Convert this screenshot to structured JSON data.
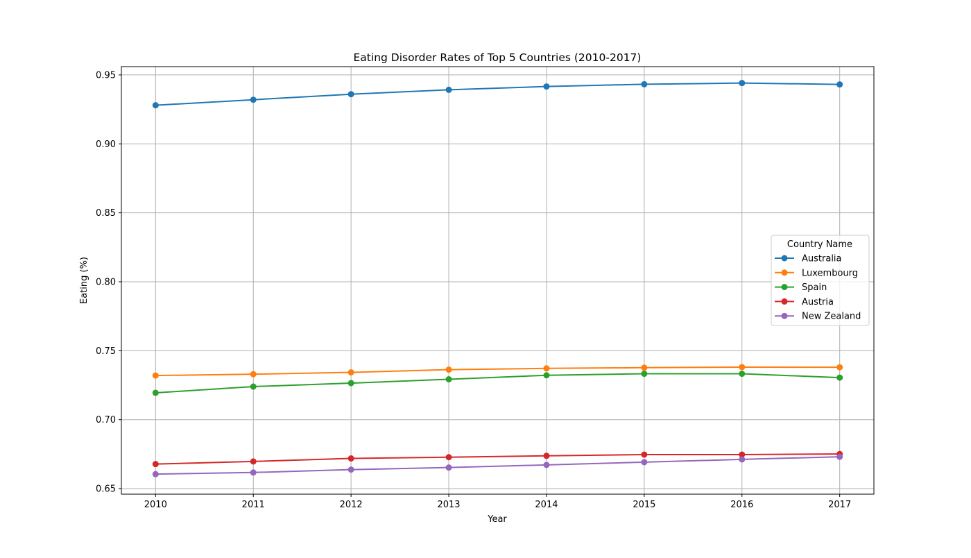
{
  "chart_data": {
    "type": "line",
    "title": "Eating Disorder Rates of Top 5 Countries (2010-2017)",
    "xlabel": "Year",
    "ylabel": "Eating (%)",
    "x": [
      2010,
      2011,
      2012,
      2013,
      2014,
      2015,
      2016,
      2017
    ],
    "x_tick_labels": [
      "2010",
      "2011",
      "2012",
      "2013",
      "2014",
      "2015",
      "2016",
      "2017"
    ],
    "ylim": [
      0.646,
      0.956
    ],
    "y_ticks": [
      0.65,
      0.7,
      0.75,
      0.8,
      0.85,
      0.9,
      0.95
    ],
    "y_tick_labels": [
      "0.65",
      "0.70",
      "0.75",
      "0.80",
      "0.85",
      "0.90",
      "0.95"
    ],
    "grid": true,
    "legend": {
      "title": "Country Name",
      "position": "center-right"
    },
    "series": [
      {
        "name": "Australia",
        "color": "#1f77b4",
        "marker": "circle",
        "values": [
          0.928,
          0.932,
          0.936,
          0.9392,
          0.9416,
          0.9432,
          0.9441,
          0.9431
        ]
      },
      {
        "name": "Luxembourg",
        "color": "#ff7f0e",
        "marker": "circle",
        "values": [
          0.732,
          0.733,
          0.7343,
          0.7363,
          0.7372,
          0.7377,
          0.7381,
          0.738
        ]
      },
      {
        "name": "Spain",
        "color": "#2ca02c",
        "marker": "circle",
        "values": [
          0.7195,
          0.724,
          0.7265,
          0.7293,
          0.7322,
          0.7333,
          0.7333,
          0.7305
        ]
      },
      {
        "name": "Austria",
        "color": "#d62728",
        "marker": "circle",
        "values": [
          0.6678,
          0.6697,
          0.6719,
          0.6728,
          0.6738,
          0.6747,
          0.6747,
          0.6751
        ]
      },
      {
        "name": "New Zealand",
        "color": "#9467bd",
        "marker": "circle",
        "values": [
          0.6605,
          0.6617,
          0.6638,
          0.6653,
          0.6672,
          0.6692,
          0.6712,
          0.6731
        ]
      }
    ]
  }
}
